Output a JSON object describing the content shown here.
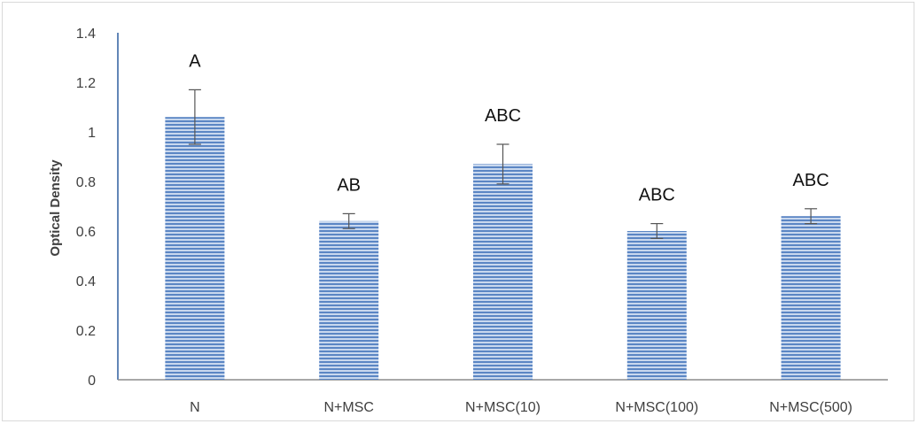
{
  "chart_data": {
    "type": "bar",
    "title": "",
    "xlabel": "",
    "ylabel": "Optical Density",
    "ylim": [
      0,
      1.4
    ],
    "yticks": [
      "0",
      "0.2",
      "0.4",
      "0.6",
      "0.8",
      "1",
      "1.2",
      "1.4"
    ],
    "categories": [
      "N",
      "N+MSC",
      "N+MSC(10)",
      "N+MSC(100)",
      "N+MSC(500)"
    ],
    "values": [
      1.06,
      0.64,
      0.87,
      0.6,
      0.66
    ],
    "errors": [
      0.11,
      0.03,
      0.08,
      0.03,
      0.03
    ],
    "labels": [
      "A",
      "AB",
      "ABC",
      "ABC",
      "ABC"
    ],
    "grid": false,
    "legend": "none",
    "colors": {
      "bar": "#5b86c4",
      "bar_light": "#c9d8ee",
      "axis": "#2f5f9f",
      "error_bar": "#555555"
    }
  }
}
